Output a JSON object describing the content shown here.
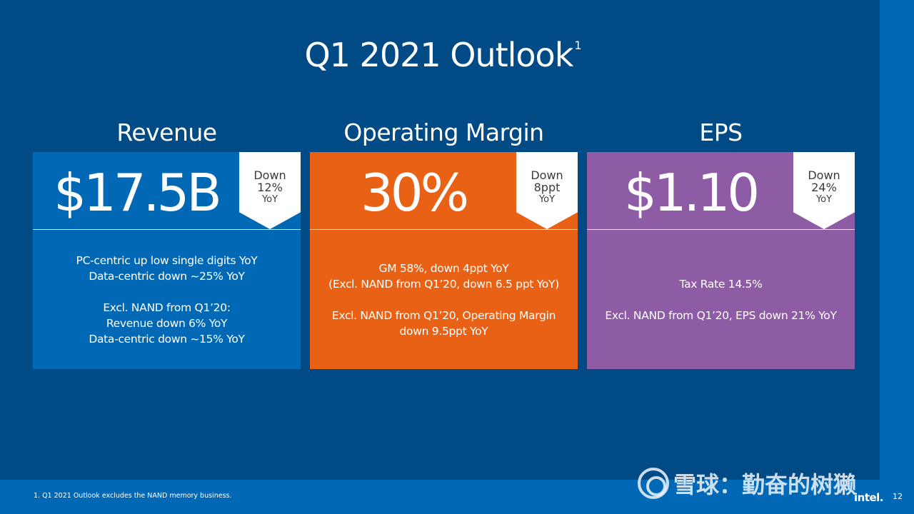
{
  "slide": {
    "title": "Q1 2021 Outlook",
    "title_footnote_marker": "1",
    "footnote": "1. Q1 2021 Outlook excludes the NAND memory business.",
    "page_number": "12",
    "logo_text": "intel.",
    "watermark_text": "雪球：勤奋的树獭"
  },
  "cards": [
    {
      "heading": "Revenue",
      "value": "$17.5B",
      "change_word": "Down",
      "change_amount": "12%",
      "change_period": "YoY",
      "body": [
        "PC-centric up low single digits YoY",
        "Data-centric down ~25% YoY",
        "",
        "Excl. NAND from Q1’20:",
        "Revenue down 6% YoY",
        "Data-centric down ~15% YoY"
      ]
    },
    {
      "heading": "Operating Margin",
      "value": "30%",
      "change_word": "Down",
      "change_amount": "8ppt",
      "change_period": "YoY",
      "body": [
        "GM 58%, down 4ppt YoY",
        "(Excl. NAND from Q1’20, down 6.5 ppt YoY)",
        "",
        "Excl. NAND from Q1’20, Operating Margin",
        "down 9.5ppt YoY"
      ]
    },
    {
      "heading": "EPS",
      "value": "$1.10",
      "change_word": "Down",
      "change_amount": "24%",
      "change_period": "YoY",
      "body": [
        "Tax Rate 14.5%",
        "",
        "Excl. NAND from Q1’20, EPS down 21% YoY"
      ]
    }
  ],
  "colors": {
    "background": "#004a86",
    "revenue_card": "#0068b5",
    "operating_margin_card": "#e96115",
    "eps_card": "#8e5ba5"
  }
}
